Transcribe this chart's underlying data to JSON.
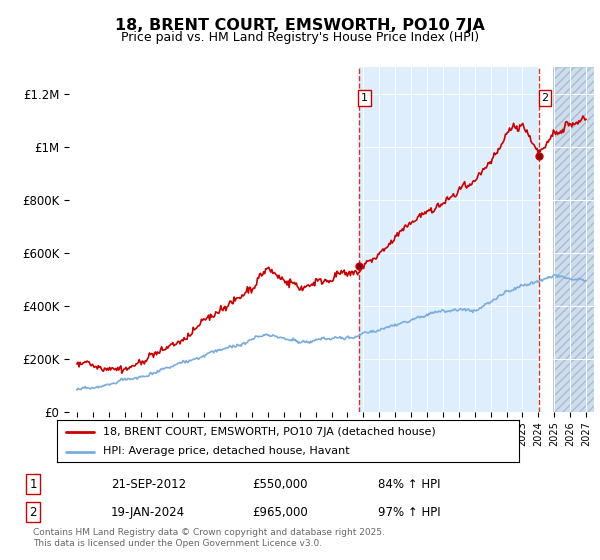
{
  "title": "18, BRENT COURT, EMSWORTH, PO10 7JA",
  "subtitle": "Price paid vs. HM Land Registry's House Price Index (HPI)",
  "legend_line1": "18, BRENT COURT, EMSWORTH, PO10 7JA (detached house)",
  "legend_line2": "HPI: Average price, detached house, Havant",
  "annotation1_label": "1",
  "annotation1_date": "21-SEP-2012",
  "annotation1_price": "£550,000",
  "annotation1_hpi": "84% ↑ HPI",
  "annotation2_label": "2",
  "annotation2_date": "19-JAN-2024",
  "annotation2_price": "£965,000",
  "annotation2_hpi": "97% ↑ HPI",
  "footer": "Contains HM Land Registry data © Crown copyright and database right 2025.\nThis data is licensed under the Open Government Licence v3.0.",
  "line1_color": "#cc0000",
  "line2_color": "#7aacdc",
  "bg_white": "#ffffff",
  "bg_highlight": "#ddeeff",
  "bg_hatch_color": "#ccddf0",
  "ylim": [
    0,
    1300000
  ],
  "xlim_start": 1994.5,
  "xlim_end": 2027.5,
  "marker1_x": 2012.72,
  "marker1_y": 550000,
  "marker2_x": 2024.05,
  "marker2_y": 965000,
  "vline1_x": 2012.72,
  "vline2_x": 2024.05,
  "highlight_start": 2012.72,
  "highlight_end": 2024.05,
  "hatch_start": 2024.9
}
